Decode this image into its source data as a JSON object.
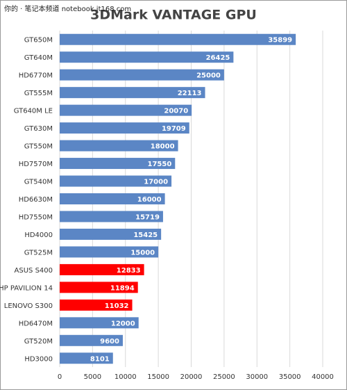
{
  "watermark": "你的 · 笔记本频道 notebook.it168.com",
  "chart_data": {
    "type": "bar",
    "orientation": "horizontal",
    "title": "3DMark VANTAGE GPU",
    "categories": [
      "GT650M",
      "GT640M",
      "HD6770M",
      "GT555M",
      "GT640M LE",
      "GT630M",
      "GT550M",
      "HD7570M",
      "GT540M",
      "HD6630M",
      "HD7550M",
      "HD4000",
      "GT525M",
      "ASUS S400",
      "HP PAVILION 14",
      "LENOVO S300",
      "HD6470M",
      "GT520M",
      "HD3000"
    ],
    "values": [
      35899,
      26425,
      25000,
      22113,
      20070,
      19709,
      18000,
      17550,
      17000,
      16000,
      15719,
      15425,
      15000,
      12833,
      11894,
      11032,
      12000,
      9600,
      8101
    ],
    "colors": [
      "#5b86c5",
      "#5b86c5",
      "#5b86c5",
      "#5b86c5",
      "#5b86c5",
      "#5b86c5",
      "#5b86c5",
      "#5b86c5",
      "#5b86c5",
      "#5b86c5",
      "#5b86c5",
      "#5b86c5",
      "#5b86c5",
      "#ff0000",
      "#ff0000",
      "#ff0000",
      "#5b86c5",
      "#5b86c5",
      "#5b86c5"
    ],
    "xlim": [
      0,
      40000
    ],
    "xticks": [
      0,
      5000,
      10000,
      15000,
      20000,
      25000,
      30000,
      35000,
      40000
    ],
    "grid": true
  }
}
